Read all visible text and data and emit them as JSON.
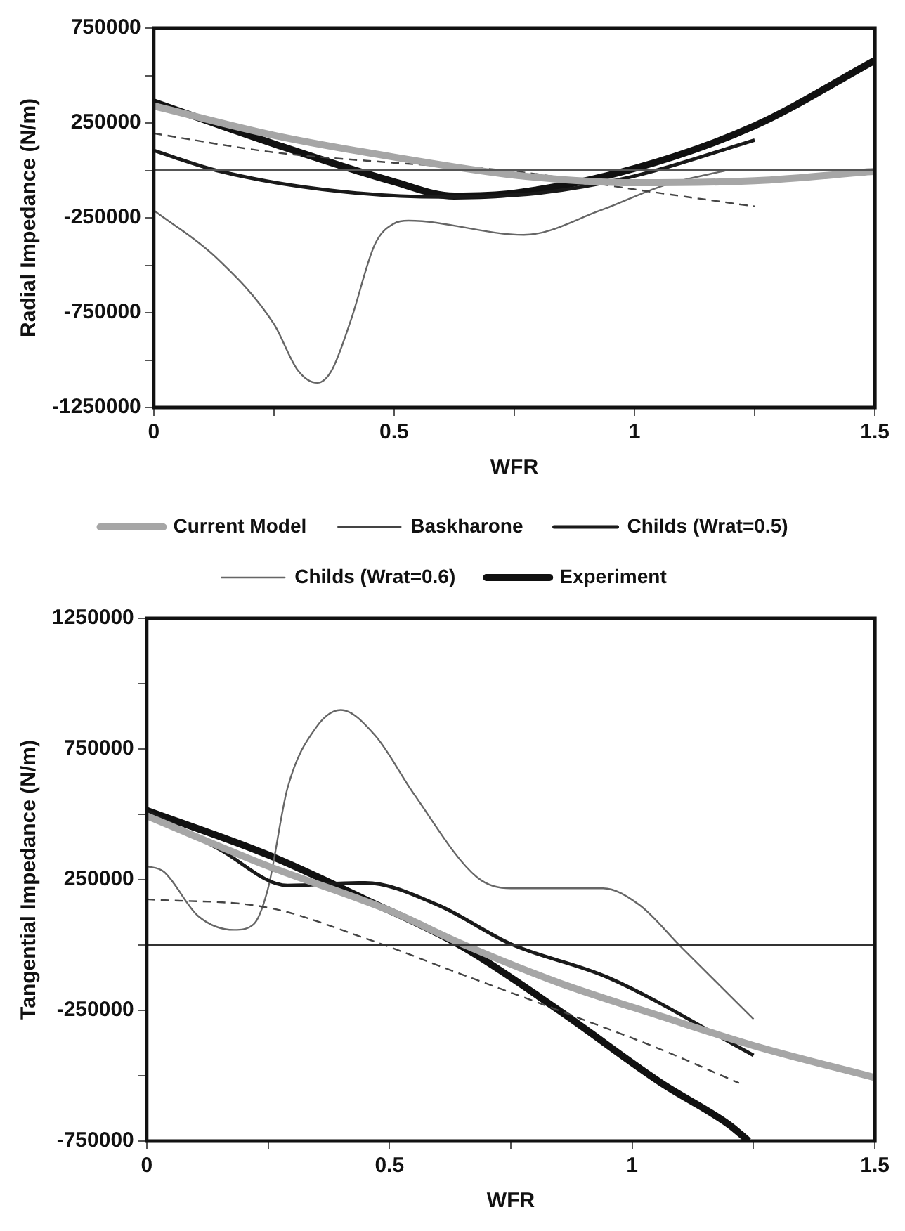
{
  "chart_data": [
    {
      "type": "line",
      "xlabel": "WFR",
      "ylabel": "Radial Impedance (N/m)",
      "xlim": [
        0,
        1.5
      ],
      "ylim": [
        -1250000,
        750000
      ],
      "xticks": [
        0,
        {
          "value": 0.25,
          "label": null
        },
        0.5,
        {
          "value": 0.75,
          "label": null
        },
        1,
        {
          "value": 1.25,
          "label": null
        },
        1.5
      ],
      "yticks": [
        750000,
        {
          "value": 500000,
          "label": null
        },
        250000,
        {
          "value": 0,
          "label": null
        },
        -250000,
        {
          "value": -500000,
          "label": null
        },
        -750000,
        {
          "value": -1000000,
          "label": null
        },
        -1250000
      ],
      "grid": false,
      "legend": "bottom",
      "marker": "none",
      "ref_lines": [
        {
          "axis": "y",
          "value": 0,
          "color": "#555555"
        }
      ],
      "series": [
        {
          "name": "Current Model",
          "color": "#a6a6a6",
          "line_style": "solid",
          "x": [
            0,
            0.25,
            0.5,
            0.75,
            1,
            1.25,
            1.5
          ],
          "values": [
            340000,
            185000,
            70000,
            -25000,
            -65000,
            -55000,
            -5000
          ]
        },
        {
          "name": "Baskharone",
          "color": "#444444",
          "line_style": "dashed",
          "x": [
            0,
            0.25,
            0.5,
            0.75,
            1,
            1.25
          ],
          "values": [
            195000,
            95000,
            40000,
            -5000,
            -100000,
            -190000
          ]
        },
        {
          "name": "Childs (Wrat=0.5)",
          "color": "#1a1a1a",
          "line_style": "solid",
          "x": [
            0,
            0.13,
            0.35,
            0.6,
            0.8,
            1,
            1.25
          ],
          "values": [
            105000,
            0,
            -100000,
            -140000,
            -120000,
            -30000,
            160000
          ]
        },
        {
          "name": "Childs (Wrat=0.6)",
          "color": "#666666",
          "line_style": "solid",
          "x": [
            0,
            0.13,
            0.25,
            0.3,
            0.34,
            0.37,
            0.41,
            0.46,
            0.5,
            0.53,
            0.77,
            0.93,
            1.06,
            1.2
          ],
          "values": [
            -210000,
            -460000,
            -810000,
            -1055000,
            -1120000,
            -1055000,
            -790000,
            -390000,
            -280000,
            -265000,
            -340000,
            -210000,
            -80000,
            5000
          ]
        },
        {
          "name": "Experiment",
          "color": "#111111",
          "line_style": "solid",
          "x": [
            0,
            0.25,
            0.5,
            0.625,
            0.75,
            1,
            1.25,
            1.5
          ],
          "values": [
            360000,
            140000,
            -60000,
            -135000,
            -120000,
            10000,
            235000,
            580000
          ]
        }
      ]
    },
    {
      "type": "line",
      "xlabel": "WFR",
      "ylabel": "Tangential Impedance (N/m)",
      "xlim": [
        0,
        1.5
      ],
      "ylim": [
        -750000,
        1250000
      ],
      "xticks": [
        0,
        {
          "value": 0.25,
          "label": null
        },
        0.5,
        {
          "value": 0.75,
          "label": null
        },
        1,
        {
          "value": 1.25,
          "label": null
        },
        1.5
      ],
      "yticks": [
        1250000,
        {
          "value": 1000000,
          "label": null
        },
        750000,
        {
          "value": 500000,
          "label": null
        },
        250000,
        {
          "value": 0,
          "label": null
        },
        -250000,
        {
          "value": -500000,
          "label": null
        },
        -750000
      ],
      "grid": false,
      "marker": "none",
      "ref_lines": [
        {
          "axis": "y",
          "value": 0,
          "color": "#333333"
        }
      ],
      "series": [
        {
          "color": "#a6a6a6",
          "line_style": "solid",
          "x": [
            0,
            0.25,
            0.5,
            0.65,
            0.85,
            1.06,
            1.26,
            1.5
          ],
          "values": [
            494000,
            302000,
            132000,
            4000,
            -145000,
            -273000,
            -390000,
            -507000
          ]
        },
        {
          "color": "#444444",
          "line_style": "dashed",
          "x": [
            0,
            0.25,
            0.45,
            0.65,
            0.85,
            1.06,
            1.22
          ],
          "values": [
            175000,
            143000,
            26000,
            -113000,
            -251000,
            -400000,
            -528000
          ]
        },
        {
          "color": "#1a1a1a",
          "line_style": "solid",
          "x": [
            0,
            0.15,
            0.29,
            0.45,
            0.6,
            0.75,
            0.95,
            1.25
          ],
          "values": [
            515000,
            366000,
            228000,
            238000,
            153000,
            4000,
            -124000,
            -422000
          ]
        },
        {
          "color": "#666666",
          "line_style": "solid",
          "x": [
            0,
            0.035,
            0.106,
            0.18,
            0.22,
            0.25,
            0.29,
            0.35,
            0.4,
            0.47,
            0.55,
            0.68,
            0.75,
            0.94,
            1.015,
            1.1,
            1.25
          ],
          "values": [
            302000,
            281000,
            111000,
            58000,
            79000,
            217000,
            600000,
            835000,
            899000,
            803000,
            579000,
            260000,
            217000,
            217000,
            153000,
            -6000,
            -283000
          ]
        },
        {
          "color": "#111111",
          "line_style": "solid",
          "x": [
            0,
            0.25,
            0.45,
            0.65,
            0.85,
            1.06,
            1.2,
            1.24
          ],
          "values": [
            515000,
            345000,
            175000,
            -6000,
            -251000,
            -528000,
            -688000,
            -750000
          ]
        }
      ]
    }
  ]
}
